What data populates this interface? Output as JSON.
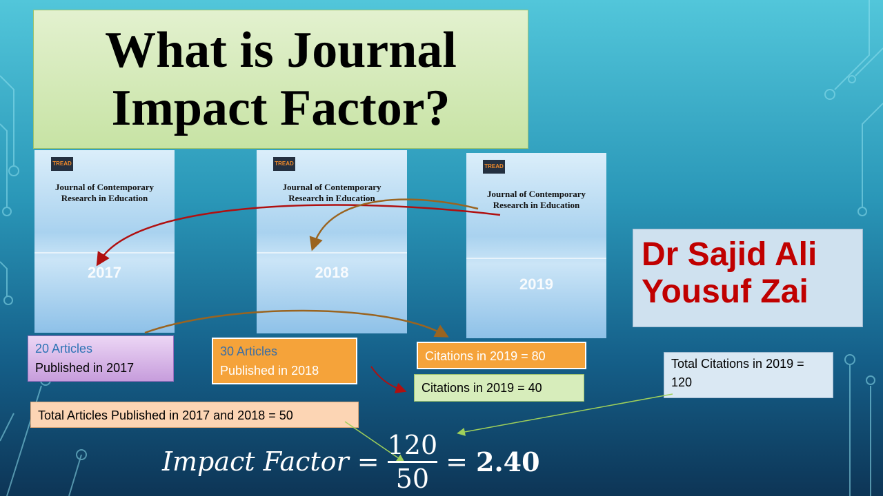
{
  "slide": {
    "title_line1": "What is Journal",
    "title_line2": "Impact Factor?",
    "author_line1": "Dr Sajid Ali",
    "author_line2": "Yousuf Zai",
    "covers": [
      {
        "logo": "TREAD",
        "journal_line1": "Journal of Contemporary",
        "journal_line2": "Research in Education",
        "year": "2017"
      },
      {
        "logo": "TREAD",
        "journal_line1": "Journal of Contemporary",
        "journal_line2": "Research in Education",
        "year": "2018"
      },
      {
        "logo": "TREAD",
        "journal_line1": "Journal of Contemporary",
        "journal_line2": "Research in Education",
        "year": "2019"
      }
    ],
    "box_2017": {
      "line1": "20 Articles",
      "line2": "Published in 2017"
    },
    "box_2018": {
      "line1": "30 Articles",
      "line2": "Published in 2018"
    },
    "citations_80": "Citations in 2019 = 80",
    "citations_40": "Citations in 2019 = 40",
    "total_citations": "Total Citations in 2019 = 120",
    "total_articles": "Total Articles Published in 2017 and 2018 = 50",
    "formula": {
      "lhs": "Impact Factor =",
      "numerator": "120",
      "denominator": "50",
      "result_eq": "=",
      "result": "2.40"
    },
    "colors": {
      "title_bg": "#d5ebb9",
      "author_text": "#c00000",
      "orange_box": "#f5a33a",
      "arrow_red": "#b01010",
      "arrow_brown": "#9a6420",
      "arrow_green": "#9fd05a"
    }
  }
}
